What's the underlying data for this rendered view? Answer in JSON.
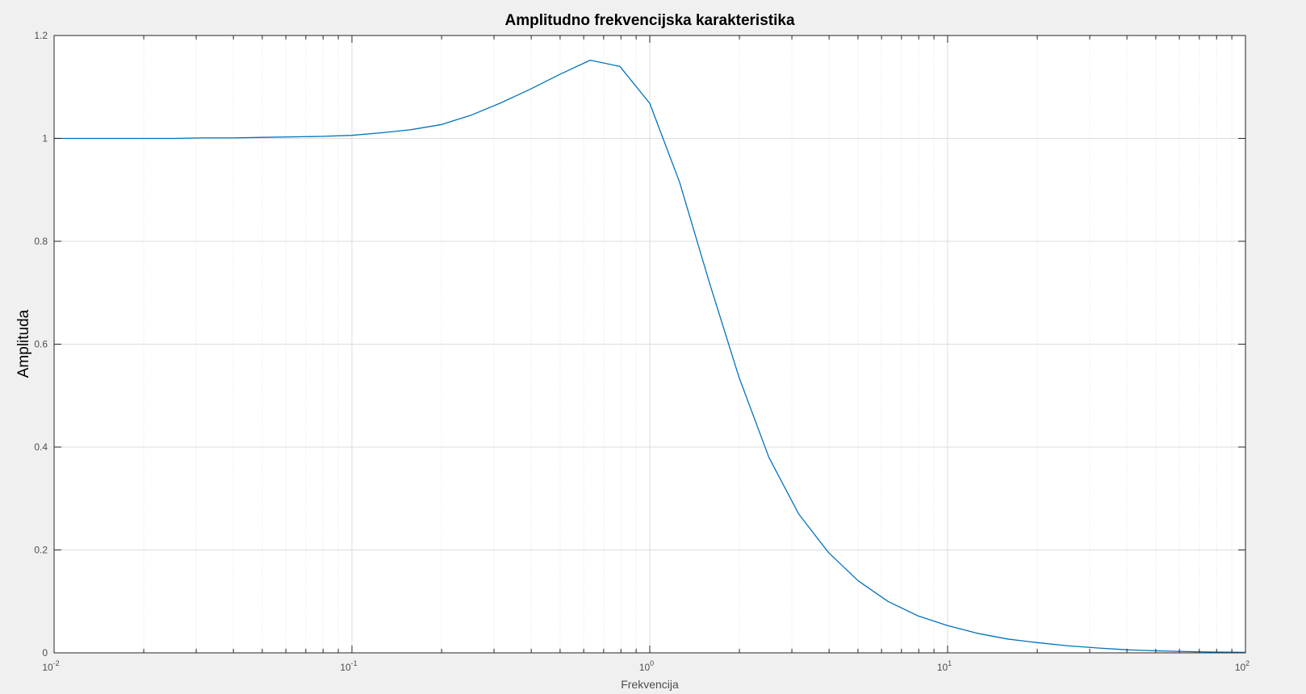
{
  "chart_data": {
    "type": "line",
    "title": "Amplitudno frekvencijska karakteristika",
    "xlabel": "Frekvencija",
    "ylabel": "Amplituda",
    "xscale": "log",
    "xlim": [
      0.01,
      100
    ],
    "ylim": [
      0,
      1.2
    ],
    "yticks": [
      0,
      0.2,
      0.4,
      0.6,
      0.8,
      1,
      1.2
    ],
    "ytick_labels": [
      "0",
      "0.2",
      "0.4",
      "0.6",
      "0.8",
      "1",
      "1.2"
    ],
    "xticks": [
      0.01,
      0.1,
      1,
      10,
      100
    ],
    "xtick_labels": [
      {
        "base": "10",
        "exp": "-2"
      },
      {
        "base": "10",
        "exp": "-1"
      },
      {
        "base": "10",
        "exp": "0"
      },
      {
        "base": "10",
        "exp": "1"
      },
      {
        "base": "10",
        "exp": "2"
      }
    ],
    "grid": true,
    "minor_grid": true,
    "line_color": "#0072bd",
    "series": [
      {
        "x": [
          0.01,
          0.0126,
          0.0158,
          0.02,
          0.0251,
          0.0316,
          0.0398,
          0.0501,
          0.0631,
          0.0794,
          0.1,
          0.126,
          0.158,
          0.2,
          0.251,
          0.316,
          0.398,
          0.501,
          0.631,
          0.794,
          1.0,
          1.259,
          1.585,
          1.995,
          2.512,
          3.162,
          3.981,
          5.012,
          6.31,
          7.943,
          10,
          12.59,
          15.85,
          19.95,
          25.12,
          31.62,
          39.81,
          50.12,
          63.1,
          79.43,
          100
        ],
        "y": [
          1.0,
          1.0,
          1.0,
          1.0,
          1.0,
          1.001,
          1.001,
          1.002,
          1.003,
          1.004,
          1.006,
          1.011,
          1.017,
          1.027,
          1.045,
          1.069,
          1.096,
          1.125,
          1.152,
          1.14,
          1.068,
          0.915,
          0.72,
          0.535,
          0.38,
          0.27,
          0.195,
          0.14,
          0.1,
          0.072,
          0.053,
          0.038,
          0.027,
          0.02,
          0.014,
          0.0095,
          0.006,
          0.004,
          0.0025,
          0.0016,
          0.001
        ]
      }
    ]
  }
}
